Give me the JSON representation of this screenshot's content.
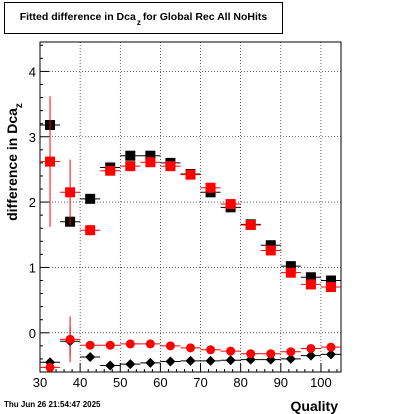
{
  "title": {
    "main": "Fitted difference in Dca",
    "subscript": "z",
    "rest": "for Global Rec All NoHits"
  },
  "datestamp": "Thu Jun 26 21:54:47 2025",
  "chart_data": {
    "type": "scatter",
    "xlabel": "Quality",
    "ylabel_main": "difference in Dca",
    "ylabel_subscript": "z",
    "xlim": [
      30,
      105
    ],
    "ylim": [
      -0.6,
      4.45
    ],
    "x_ticks": [
      30,
      40,
      50,
      60,
      70,
      80,
      90,
      100
    ],
    "y_ticks": [
      0,
      1,
      2,
      3,
      4
    ],
    "grid": true,
    "series": [
      {
        "marker": "square",
        "color": "#000000",
        "points": [
          {
            "x": 32.5,
            "y": 3.18,
            "err": 0.0
          },
          {
            "x": 37.5,
            "y": 1.7,
            "err": 0.0
          },
          {
            "x": 42.5,
            "y": 2.05,
            "err": 0.0
          },
          {
            "x": 47.5,
            "y": 2.53,
            "err": 0.0
          },
          {
            "x": 52.5,
            "y": 2.71,
            "err": 0.0
          },
          {
            "x": 57.5,
            "y": 2.71,
            "err": 0.0
          },
          {
            "x": 62.5,
            "y": 2.6,
            "err": 0.0
          },
          {
            "x": 67.5,
            "y": 2.43,
            "err": 0.0
          },
          {
            "x": 72.5,
            "y": 2.15,
            "err": 0.0
          },
          {
            "x": 77.5,
            "y": 1.92,
            "err": 0.0
          },
          {
            "x": 82.5,
            "y": 1.66,
            "err": 0.0
          },
          {
            "x": 87.5,
            "y": 1.34,
            "err": 0.0
          },
          {
            "x": 92.5,
            "y": 1.02,
            "err": 0.0
          },
          {
            "x": 97.5,
            "y": 0.85,
            "err": 0.0
          },
          {
            "x": 102.5,
            "y": 0.8,
            "err": 0.0
          }
        ]
      },
      {
        "marker": "square",
        "color": "#ff0000",
        "points": [
          {
            "x": 32.5,
            "y": 2.62,
            "err": 1.0
          },
          {
            "x": 37.5,
            "y": 2.15,
            "err": 0.5
          },
          {
            "x": 42.5,
            "y": 1.57,
            "err": 0.08
          },
          {
            "x": 47.5,
            "y": 2.48,
            "err": 0.07
          },
          {
            "x": 52.5,
            "y": 2.55,
            "err": 0.05
          },
          {
            "x": 57.5,
            "y": 2.61,
            "err": 0.05
          },
          {
            "x": 62.5,
            "y": 2.55,
            "err": 0.05
          },
          {
            "x": 67.5,
            "y": 2.42,
            "err": 0.05
          },
          {
            "x": 72.5,
            "y": 2.22,
            "err": 0.05
          },
          {
            "x": 77.5,
            "y": 1.97,
            "err": 0.05
          },
          {
            "x": 82.5,
            "y": 1.65,
            "err": 0.05
          },
          {
            "x": 87.5,
            "y": 1.26,
            "err": 0.05
          },
          {
            "x": 92.5,
            "y": 0.92,
            "err": 0.05
          },
          {
            "x": 97.5,
            "y": 0.74,
            "err": 0.05
          },
          {
            "x": 102.5,
            "y": 0.7,
            "err": 0.05
          }
        ]
      },
      {
        "marker": "diamond",
        "color": "#000000",
        "points": [
          {
            "x": 32.5,
            "y": -0.45,
            "err": 0.0
          },
          {
            "x": 37.5,
            "y": -0.13,
            "err": 0.22
          },
          {
            "x": 42.5,
            "y": -0.37,
            "err": 0.0
          },
          {
            "x": 47.5,
            "y": -0.5,
            "err": 0.0
          },
          {
            "x": 52.5,
            "y": -0.48,
            "err": 0.0
          },
          {
            "x": 57.5,
            "y": -0.46,
            "err": 0.0
          },
          {
            "x": 62.5,
            "y": -0.44,
            "err": 0.0
          },
          {
            "x": 67.5,
            "y": -0.43,
            "err": 0.0
          },
          {
            "x": 72.5,
            "y": -0.43,
            "err": 0.0
          },
          {
            "x": 77.5,
            "y": -0.42,
            "err": 0.0
          },
          {
            "x": 82.5,
            "y": -0.41,
            "err": 0.0
          },
          {
            "x": 87.5,
            "y": -0.41,
            "err": 0.0
          },
          {
            "x": 92.5,
            "y": -0.4,
            "err": 0.0
          },
          {
            "x": 97.5,
            "y": -0.35,
            "err": 0.0
          },
          {
            "x": 102.5,
            "y": -0.33,
            "err": 0.0
          }
        ]
      },
      {
        "marker": "circle",
        "color": "#ff0000",
        "points": [
          {
            "x": 32.5,
            "y": -0.53,
            "err": 0.05
          },
          {
            "x": 37.5,
            "y": -0.1,
            "err": 0.35
          },
          {
            "x": 42.5,
            "y": -0.19,
            "err": 0.0
          },
          {
            "x": 47.5,
            "y": -0.19,
            "err": 0.0
          },
          {
            "x": 52.5,
            "y": -0.17,
            "err": 0.0
          },
          {
            "x": 57.5,
            "y": -0.17,
            "err": 0.0
          },
          {
            "x": 62.5,
            "y": -0.2,
            "err": 0.0
          },
          {
            "x": 67.5,
            "y": -0.23,
            "err": 0.0
          },
          {
            "x": 72.5,
            "y": -0.26,
            "err": 0.0
          },
          {
            "x": 77.5,
            "y": -0.28,
            "err": 0.0
          },
          {
            "x": 82.5,
            "y": -0.32,
            "err": 0.0
          },
          {
            "x": 87.5,
            "y": -0.32,
            "err": 0.0
          },
          {
            "x": 92.5,
            "y": -0.29,
            "err": 0.0
          },
          {
            "x": 97.5,
            "y": -0.24,
            "err": 0.0
          },
          {
            "x": 102.5,
            "y": -0.22,
            "err": 0.0
          }
        ]
      }
    ]
  }
}
